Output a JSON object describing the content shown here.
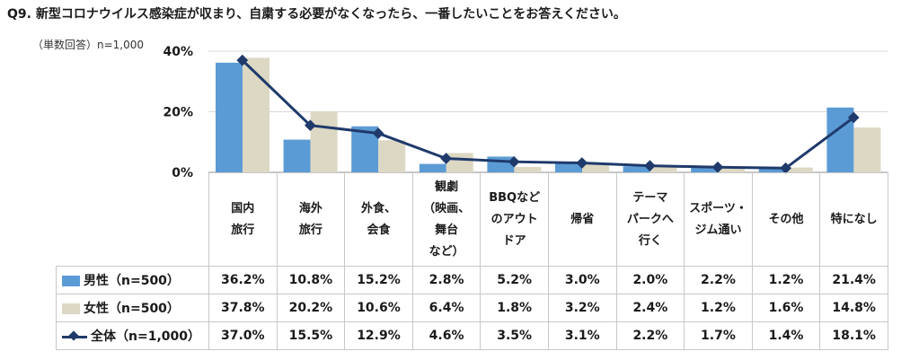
{
  "title": "Q9. 新型コロナウイルス感染症が収まり、自粛する必要がなくなったら、一番したいことをお答えください。",
  "subtitle": "（単数回答）n=1,000",
  "chart_data": {
    "type": "bar",
    "categories": [
      [
        "国内",
        "旅行"
      ],
      [
        "海外",
        "旅行"
      ],
      [
        "外食、",
        "会食"
      ],
      [
        "観劇",
        "（映画、",
        "舞台",
        "など）"
      ],
      [
        "BBQなど",
        "のアウト",
        "ドア"
      ],
      [
        "帰省"
      ],
      [
        "テーマ",
        "パークへ",
        "行く"
      ],
      [
        "スポーツ・",
        "ジム通い"
      ],
      [
        "その他"
      ],
      [
        "特になし"
      ]
    ],
    "series": [
      {
        "name": "男性（n=500）",
        "kind": "bar",
        "color": "#5b9bd5",
        "values": [
          36.2,
          10.8,
          15.2,
          2.8,
          5.2,
          3.0,
          2.0,
          2.2,
          1.2,
          21.4
        ],
        "labels": [
          "36.2%",
          "10.8%",
          "15.2%",
          "2.8%",
          "5.2%",
          "3.0%",
          "2.0%",
          "2.2%",
          "1.2%",
          "21.4%"
        ]
      },
      {
        "name": "女性（n=500）",
        "kind": "bar",
        "color": "#ddd8c4",
        "values": [
          37.8,
          20.2,
          10.6,
          6.4,
          1.8,
          3.2,
          2.4,
          1.2,
          1.6,
          14.8
        ],
        "labels": [
          "37.8%",
          "20.2%",
          "10.6%",
          "6.4%",
          "1.8%",
          "3.2%",
          "2.4%",
          "1.2%",
          "1.6%",
          "14.8%"
        ]
      },
      {
        "name": "全体（n=1,000）",
        "kind": "line",
        "color": "#1f3a6b",
        "values": [
          37.0,
          15.5,
          12.9,
          4.6,
          3.5,
          3.1,
          2.2,
          1.7,
          1.4,
          18.1
        ],
        "labels": [
          "37.0%",
          "15.5%",
          "12.9%",
          "4.6%",
          "3.5%",
          "3.1%",
          "2.2%",
          "1.7%",
          "1.4%",
          "18.1%"
        ]
      }
    ],
    "ylim": [
      0,
      40
    ],
    "yticks": [
      0,
      20,
      40
    ],
    "ytick_labels": [
      "0%",
      "20%",
      "40%"
    ],
    "grid": true,
    "legend": "table-left"
  }
}
